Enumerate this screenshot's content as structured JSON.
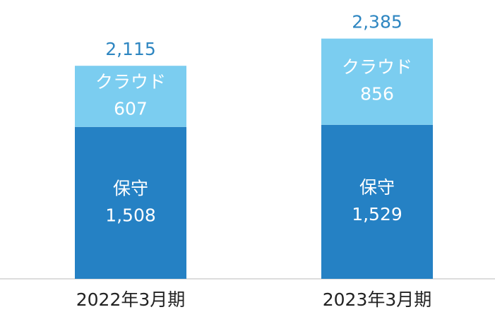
{
  "chart_data": {
    "type": "stacked_bar",
    "categories": [
      "2022年3月期",
      "2023年3月期"
    ],
    "series": [
      {
        "name": "保守",
        "color": "#2581c4",
        "values": [
          1508,
          1529
        ],
        "value_labels": [
          "1,508",
          "1,529"
        ]
      },
      {
        "name": "クラウド",
        "color": "#7bcdf0",
        "values": [
          607,
          856
        ],
        "value_labels": [
          "607",
          "856"
        ]
      }
    ],
    "totals": {
      "values": [
        2115,
        2385
      ],
      "value_labels": [
        "2,115",
        "2,385"
      ]
    }
  }
}
